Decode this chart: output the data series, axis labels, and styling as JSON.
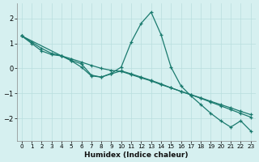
{
  "xlabel": "Humidex (Indice chaleur)",
  "x_main": [
    0,
    1,
    2,
    3,
    4,
    5,
    6,
    7,
    8,
    9,
    10,
    11,
    12,
    13,
    14,
    15,
    16,
    17,
    18,
    19,
    20,
    21,
    22,
    23
  ],
  "y_main": [
    1.3,
    1.0,
    0.7,
    0.55,
    0.5,
    0.3,
    0.05,
    -0.3,
    -0.35,
    -0.2,
    0.05,
    1.05,
    1.8,
    2.25,
    1.35,
    0.05,
    -0.7,
    -1.1,
    -1.45,
    -1.8,
    -2.1,
    -2.35,
    -2.1,
    -2.5
  ],
  "x_line2": [
    0,
    1,
    2,
    3,
    4,
    5,
    6,
    7,
    8,
    9,
    10,
    11,
    12,
    13,
    14,
    15,
    16,
    17,
    18,
    19,
    20,
    21,
    22,
    23
  ],
  "y_line2": [
    1.3,
    1.05,
    0.8,
    0.6,
    0.5,
    0.38,
    0.25,
    0.12,
    0.0,
    -0.08,
    -0.12,
    -0.25,
    -0.38,
    -0.5,
    -0.65,
    -0.78,
    -0.92,
    -1.05,
    -1.18,
    -1.32,
    -1.45,
    -1.58,
    -1.72,
    -1.85
  ],
  "x_line3": [
    0,
    4,
    5,
    6,
    7,
    8,
    9,
    10,
    11,
    12,
    13,
    14,
    15,
    16,
    17,
    18,
    19,
    20,
    21,
    22,
    23
  ],
  "y_line3": [
    1.3,
    0.5,
    0.32,
    0.18,
    -0.27,
    -0.35,
    -0.22,
    -0.1,
    -0.22,
    -0.35,
    -0.48,
    -0.62,
    -0.78,
    -0.92,
    -1.06,
    -1.2,
    -1.35,
    -1.5,
    -1.65,
    -1.8,
    -1.95
  ],
  "line_color": "#1a7a6e",
  "bg_color": "#d6f0f0",
  "grid_color": "#b8dede",
  "ylim": [
    -2.9,
    2.6
  ],
  "yticks": [
    -2,
    -1,
    0,
    1,
    2
  ],
  "xlim": [
    -0.5,
    23.5
  ]
}
